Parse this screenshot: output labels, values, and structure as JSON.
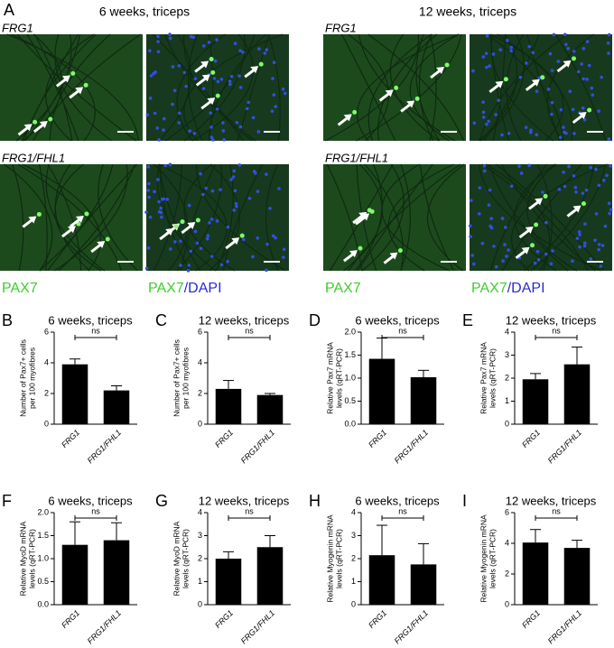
{
  "panel_a": {
    "label": "A",
    "columns": [
      "6 weeks, triceps",
      "12 weeks, triceps"
    ],
    "rows": [
      "FRG1",
      "FRG1/FHL1"
    ],
    "stain": "PAX7",
    "counterstain": "/DAPI"
  },
  "chart_data": [
    {
      "type": "bar",
      "letter": "B",
      "title": "6 weeks, triceps",
      "ylabel": [
        "Number of Pax7+ cells",
        "per 100 myofibres"
      ],
      "categories": [
        "FRG1",
        "FRG1/FHL1"
      ],
      "values": [
        3.9,
        2.2
      ],
      "errors": [
        0.35,
        0.3
      ],
      "ylim": [
        0,
        6
      ],
      "yticks": [
        0,
        2,
        4,
        6
      ],
      "annotation": "ns",
      "color": "#000000"
    },
    {
      "type": "bar",
      "letter": "C",
      "title": "12 weeks, triceps",
      "ylabel": [
        "Number of Pax7+ cells",
        "per 100 myofibres"
      ],
      "categories": [
        "FRG1",
        "FRG1/FHL1"
      ],
      "values": [
        2.3,
        1.9
      ],
      "errors": [
        0.55,
        0.1
      ],
      "ylim": [
        0,
        6
      ],
      "yticks": [
        0,
        2,
        4,
        6
      ],
      "annotation": "ns",
      "color": "#000000"
    },
    {
      "type": "bar",
      "letter": "D",
      "title": "6 weeks, triceps",
      "ylabel": [
        "Relative Pax7 mRNA",
        "levels (qRT-PCR)"
      ],
      "categories": [
        "FRG1",
        "FRG1/FHL1"
      ],
      "values": [
        1.42,
        1.02
      ],
      "errors": [
        0.45,
        0.15
      ],
      "ylim": [
        0,
        2
      ],
      "yticks": [
        {
          "value": 0,
          "label": "0.0"
        },
        0.5,
        {
          "value": 1,
          "label": "1.0"
        },
        1.5,
        {
          "value": 2,
          "label": "2.0"
        }
      ],
      "annotation": "ns",
      "color": "#000000"
    },
    {
      "type": "bar",
      "letter": "E",
      "title": "12 weeks, triceps",
      "ylabel": [
        "Relative Pax7 mRNA",
        "levels (qRT-PCR)"
      ],
      "categories": [
        "FRG1",
        "FRG1/FHL1"
      ],
      "values": [
        1.95,
        2.6
      ],
      "errors": [
        0.25,
        0.75
      ],
      "ylim": [
        0,
        4
      ],
      "yticks": [
        0,
        1,
        2,
        3,
        4
      ],
      "annotation": "ns",
      "color": "#000000"
    },
    {
      "type": "bar",
      "letter": "F",
      "title": "6 weeks, triceps",
      "ylabel": [
        "Relative MyoD mRNA",
        "levels (qRT-PCR)"
      ],
      "categories": [
        "FRG1",
        "FRG1/FHL1"
      ],
      "values": [
        1.3,
        1.4
      ],
      "errors": [
        0.5,
        0.38
      ],
      "ylim": [
        0,
        2
      ],
      "yticks": [
        {
          "value": 0,
          "label": "0.0"
        },
        0.5,
        {
          "value": 1,
          "label": "1.0"
        },
        1.5,
        {
          "value": 2,
          "label": "2.0"
        }
      ],
      "annotation": "ns",
      "color": "#000000"
    },
    {
      "type": "bar",
      "letter": "G",
      "title": "12 weeks, triceps",
      "ylabel": [
        "Relative MyoD mRNA",
        "levels (qRT-PCR)"
      ],
      "categories": [
        "FRG1",
        "FRG1/FHL1"
      ],
      "values": [
        2.0,
        2.5
      ],
      "errors": [
        0.3,
        0.5
      ],
      "ylim": [
        0,
        4
      ],
      "yticks": [
        0,
        1,
        2,
        3,
        4
      ],
      "annotation": "ns",
      "color": "#000000"
    },
    {
      "type": "bar",
      "letter": "H",
      "title": "6 weeks, triceps",
      "ylabel": [
        "Relative Myogenin mRNA",
        "levels (qRT-PCR)"
      ],
      "categories": [
        "FRG1",
        "FRG1/FHL1"
      ],
      "values": [
        2.15,
        1.75
      ],
      "errors": [
        1.3,
        0.9
      ],
      "ylim": [
        0,
        4
      ],
      "yticks": [
        0,
        1,
        2,
        3,
        4
      ],
      "annotation": "ns",
      "color": "#000000"
    },
    {
      "type": "bar",
      "letter": "I",
      "title": "12 weeks, triceps",
      "ylabel": [
        "Relative Myogenin mRNA",
        "levels (qRT-PCR)"
      ],
      "categories": [
        "FRG1",
        "FRG1/FHL1"
      ],
      "values": [
        4.05,
        3.7
      ],
      "errors": [
        0.85,
        0.5
      ],
      "ylim": [
        0,
        6
      ],
      "yticks": [
        0,
        2,
        4,
        6
      ],
      "annotation": "ns",
      "color": "#000000"
    }
  ]
}
